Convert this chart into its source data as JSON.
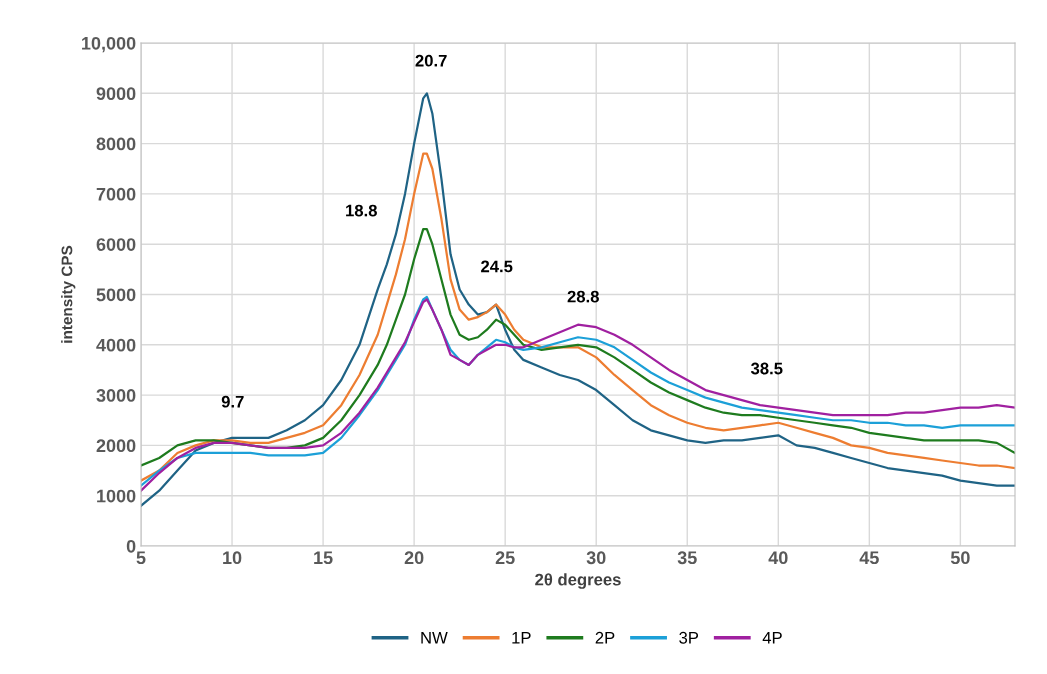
{
  "chart_data": {
    "type": "line",
    "xlabel": "2θ degrees",
    "ylabel": "intensity CPS",
    "x": [
      5,
      6,
      7,
      8,
      9,
      10,
      11,
      12,
      13,
      14,
      15,
      16,
      17,
      18,
      18.5,
      19,
      19.5,
      20,
      20.5,
      20.7,
      21,
      21.5,
      22,
      22.5,
      23,
      23.5,
      24,
      24.5,
      25,
      25.5,
      26,
      27,
      28,
      29,
      30,
      31,
      32,
      33,
      34,
      35,
      36,
      37,
      38,
      39,
      40,
      41,
      42,
      43,
      44,
      45,
      46,
      47,
      48,
      49,
      50,
      51,
      52,
      53
    ],
    "series": [
      {
        "name": "NW",
        "color": "#1f6385",
        "values": [
          800,
          1100,
          1500,
          1900,
          2050,
          2150,
          2150,
          2150,
          2300,
          2500,
          2800,
          3300,
          4000,
          5100,
          5600,
          6200,
          7000,
          8000,
          8900,
          9000,
          8600,
          7300,
          5800,
          5100,
          4800,
          4600,
          4650,
          4800,
          4300,
          3900,
          3700,
          3550,
          3400,
          3300,
          3100,
          2800,
          2500,
          2300,
          2200,
          2100,
          2050,
          2100,
          2100,
          2150,
          2200,
          2000,
          1950,
          1850,
          1750,
          1650,
          1550,
          1500,
          1450,
          1400,
          1300,
          1250,
          1200,
          1200
        ]
      },
      {
        "name": "1P",
        "color": "#ed7d31",
        "values": [
          1300,
          1500,
          1850,
          2000,
          2100,
          2100,
          2050,
          2050,
          2150,
          2250,
          2400,
          2800,
          3400,
          4200,
          4800,
          5400,
          6100,
          7000,
          7800,
          7800,
          7500,
          6500,
          5300,
          4700,
          4500,
          4550,
          4650,
          4800,
          4600,
          4300,
          4100,
          3950,
          3950,
          3950,
          3750,
          3400,
          3100,
          2800,
          2600,
          2450,
          2350,
          2300,
          2350,
          2400,
          2450,
          2350,
          2250,
          2150,
          2000,
          1950,
          1850,
          1800,
          1750,
          1700,
          1650,
          1600,
          1600,
          1550
        ]
      },
      {
        "name": "2P",
        "color": "#1e7b1e",
        "values": [
          1600,
          1750,
          2000,
          2100,
          2100,
          2050,
          2000,
          1950,
          1950,
          2000,
          2150,
          2500,
          3000,
          3600,
          4000,
          4500,
          5000,
          5700,
          6300,
          6300,
          6000,
          5300,
          4600,
          4200,
          4100,
          4150,
          4300,
          4500,
          4400,
          4200,
          4000,
          3900,
          3950,
          4000,
          3950,
          3750,
          3500,
          3250,
          3050,
          2900,
          2750,
          2650,
          2600,
          2600,
          2550,
          2500,
          2450,
          2400,
          2350,
          2250,
          2200,
          2150,
          2100,
          2100,
          2100,
          2100,
          2050,
          1850
        ]
      },
      {
        "name": "3P",
        "color": "#1ca0d8",
        "values": [
          1200,
          1500,
          1750,
          1850,
          1850,
          1850,
          1850,
          1800,
          1800,
          1800,
          1850,
          2150,
          2600,
          3100,
          3400,
          3700,
          4000,
          4500,
          4900,
          4950,
          4700,
          4300,
          3900,
          3700,
          3600,
          3800,
          3950,
          4100,
          4050,
          3950,
          3900,
          3950,
          4050,
          4150,
          4100,
          3950,
          3700,
          3450,
          3250,
          3100,
          2950,
          2850,
          2750,
          2700,
          2650,
          2600,
          2550,
          2500,
          2500,
          2450,
          2450,
          2400,
          2400,
          2350,
          2400,
          2400,
          2400,
          2400
        ]
      },
      {
        "name": "4P",
        "color": "#a020a0",
        "values": [
          1100,
          1450,
          1750,
          1950,
          2050,
          2050,
          2000,
          1950,
          1950,
          1950,
          2000,
          2250,
          2650,
          3150,
          3450,
          3750,
          4050,
          4450,
          4850,
          4900,
          4700,
          4300,
          3800,
          3700,
          3600,
          3800,
          3900,
          4000,
          4000,
          3950,
          3950,
          4100,
          4250,
          4400,
          4350,
          4200,
          4000,
          3750,
          3500,
          3300,
          3100,
          3000,
          2900,
          2800,
          2750,
          2700,
          2650,
          2600,
          2600,
          2600,
          2600,
          2650,
          2650,
          2700,
          2750,
          2750,
          2800,
          2750
        ]
      }
    ],
    "xlim": [
      5,
      53
    ],
    "xticks": [
      5,
      10,
      15,
      20,
      25,
      30,
      35,
      40,
      45,
      50
    ],
    "ylim": [
      0,
      10000
    ],
    "yticks": [
      0,
      1000,
      2000,
      3000,
      4000,
      5000,
      6000,
      7000,
      8000,
      9000,
      {
        "value": 10000,
        "label": "10,000"
      }
    ],
    "annotations": [
      "9.7",
      "18.8",
      "20.7",
      "24.5",
      "28.8",
      "38.5"
    ],
    "grid": true,
    "legend": "bottom",
    "marker": "none",
    "line_style": "solid"
  }
}
